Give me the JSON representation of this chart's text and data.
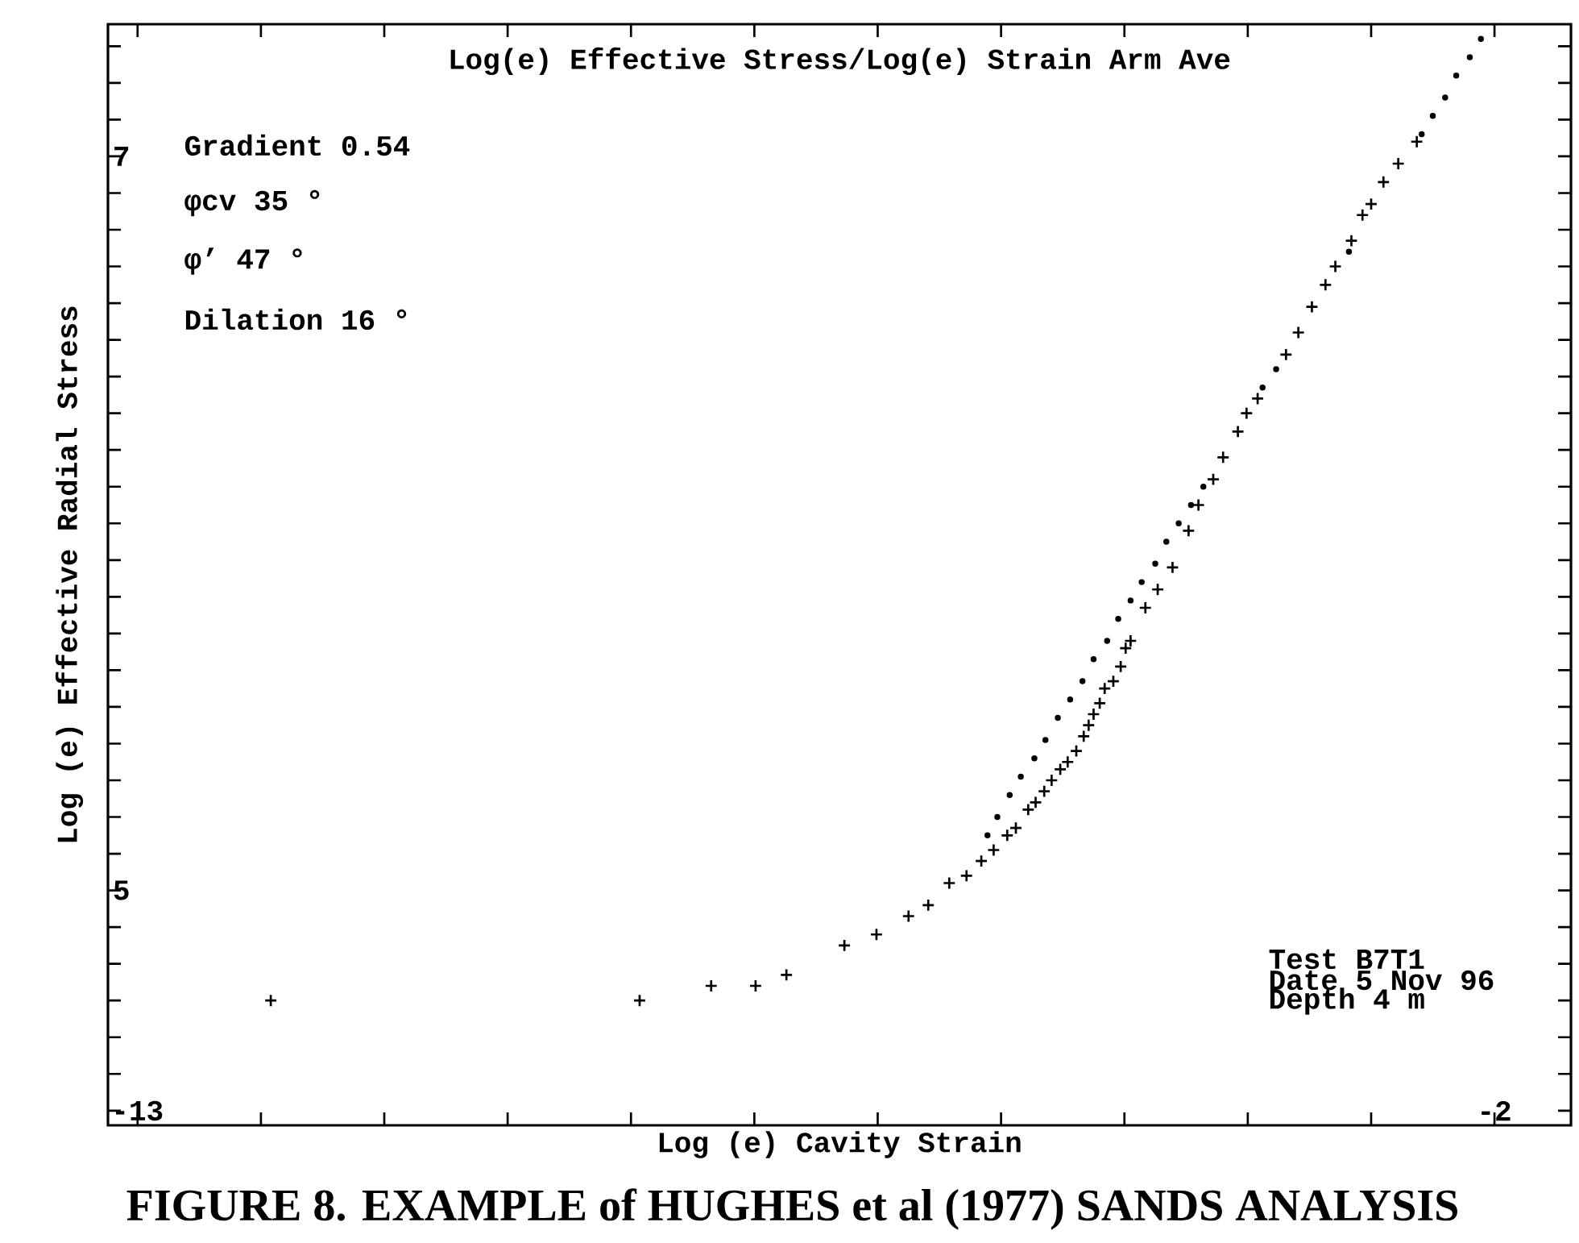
{
  "chart_data": {
    "type": "scatter",
    "title": "Log(e) Effective Stress/Log(e) Strain Arm Ave",
    "xlabel": "Log (e) Cavity Strain",
    "ylabel": "Log (e) Effective Radial Stress",
    "xlim": [
      -13.24,
      -1.38
    ],
    "ylim": [
      4.36,
      7.36
    ],
    "xticks": [
      -13,
      {
        "value": -12,
        "label": null
      },
      {
        "value": -11,
        "label": null
      },
      {
        "value": -10,
        "label": null
      },
      {
        "value": -9,
        "label": null
      },
      {
        "value": -8,
        "label": null
      },
      {
        "value": -7,
        "label": null
      },
      {
        "value": -6,
        "label": null
      },
      {
        "value": -5,
        "label": null
      },
      {
        "value": -4,
        "label": null
      },
      {
        "value": -3,
        "label": null
      },
      -2
    ],
    "yticks": [
      {
        "value": 4.4,
        "label": null
      },
      {
        "value": 4.5,
        "label": null
      },
      {
        "value": 4.6,
        "label": null
      },
      {
        "value": 4.7,
        "label": null
      },
      {
        "value": 4.8,
        "label": null
      },
      {
        "value": 4.9,
        "label": null
      },
      5,
      {
        "value": 5.1,
        "label": null
      },
      {
        "value": 5.2,
        "label": null
      },
      {
        "value": 5.3,
        "label": null
      },
      {
        "value": 5.4,
        "label": null
      },
      {
        "value": 5.5,
        "label": null
      },
      {
        "value": 5.6,
        "label": null
      },
      {
        "value": 5.7,
        "label": null
      },
      {
        "value": 5.8,
        "label": null
      },
      {
        "value": 5.9,
        "label": null
      },
      {
        "value": 6,
        "label": null
      },
      {
        "value": 6.1,
        "label": null
      },
      {
        "value": 6.2,
        "label": null
      },
      {
        "value": 6.3,
        "label": null
      },
      {
        "value": 6.4,
        "label": null
      },
      {
        "value": 6.5,
        "label": null
      },
      {
        "value": 6.6,
        "label": null
      },
      {
        "value": 6.7,
        "label": null
      },
      {
        "value": 6.8,
        "label": null
      },
      {
        "value": 6.9,
        "label": null
      },
      7,
      {
        "value": 7.1,
        "label": null
      },
      {
        "value": 7.2,
        "label": null
      },
      {
        "value": 7.3,
        "label": null
      }
    ],
    "series": [
      {
        "color": "#000000",
        "marker": "cross",
        "x": [
          -11.92,
          -8.93,
          -8.35,
          -7.99,
          -7.74,
          -7.27,
          -7.01,
          -6.75,
          -6.59,
          -6.42,
          -6.28,
          -6.16,
          -6.06,
          -5.95,
          -5.88,
          -5.78,
          -5.72,
          -5.65,
          -5.59,
          -5.52,
          -5.46,
          -5.39,
          -5.33,
          -5.29,
          -5.25,
          -5.2,
          -5.16,
          -5.09,
          -5.03,
          -4.99,
          -4.95,
          -4.83,
          -4.73,
          -4.61,
          -4.48,
          -4.4,
          -4.28,
          -4.2,
          -4.08,
          -4.01,
          -3.92,
          -3.69,
          -3.59,
          -3.48,
          -3.37,
          -3.29,
          -3.16,
          -3.07,
          -3.0,
          -2.9,
          -2.78,
          -2.63
        ],
        "values": [
          4.7,
          4.7,
          4.74,
          4.74,
          4.77,
          4.85,
          4.88,
          4.93,
          4.96,
          5.02,
          5.04,
          5.08,
          5.11,
          5.15,
          5.17,
          5.22,
          5.24,
          5.27,
          5.3,
          5.33,
          5.35,
          5.38,
          5.42,
          5.45,
          5.48,
          5.51,
          5.55,
          5.57,
          5.61,
          5.66,
          5.68,
          5.77,
          5.82,
          5.88,
          5.98,
          6.05,
          6.12,
          6.18,
          6.25,
          6.3,
          6.34,
          6.46,
          6.52,
          6.59,
          6.65,
          6.7,
          6.77,
          6.84,
          6.87,
          6.93,
          6.98,
          7.04
        ]
      },
      {
        "color": "#000000",
        "marker": "circle",
        "x": [
          -6.11,
          -6.03,
          -5.93,
          -5.84,
          -5.73,
          -5.64,
          -5.54,
          -5.44,
          -5.34,
          -5.25,
          -5.14,
          -5.05,
          -4.95,
          -4.86,
          -4.75,
          -4.66,
          -4.56,
          -4.46,
          -4.36,
          -3.88,
          -3.77,
          -3.18,
          -2.59,
          -2.5,
          -2.4,
          -2.31,
          -2.2,
          -2.11
        ],
        "values": [
          5.15,
          5.2,
          5.26,
          5.31,
          5.36,
          5.41,
          5.47,
          5.52,
          5.57,
          5.63,
          5.68,
          5.74,
          5.79,
          5.84,
          5.89,
          5.95,
          6.0,
          6.05,
          6.1,
          6.37,
          6.42,
          6.74,
          7.06,
          7.11,
          7.16,
          7.22,
          7.27,
          7.32
        ]
      }
    ],
    "annotations": [
      "Gradient 0.54",
      "φcv      35 °",
      "φ’       47 °",
      "Dilation 16 °",
      "Test B7T1",
      "Date  5 Nov 96",
      "Depth 4 m",
      "FIGURE 8. EXAMPLE of HUGHES et al (1977) SANDS ANALYSIS"
    ]
  }
}
